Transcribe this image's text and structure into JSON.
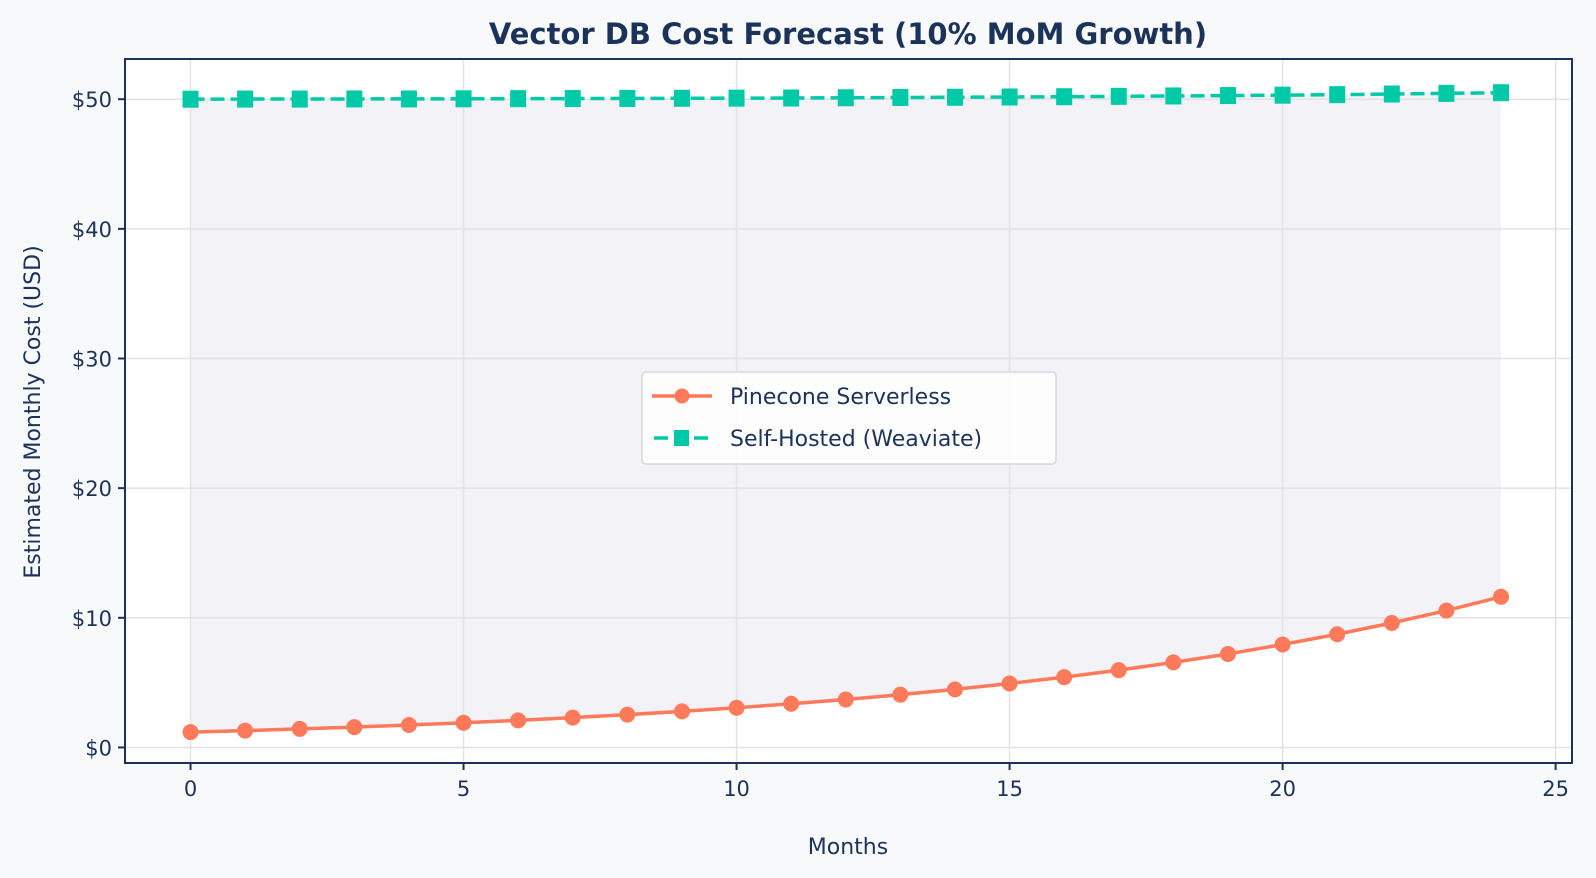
{
  "chart_data": {
    "type": "line",
    "title": "Vector DB Cost Forecast (10% MoM Growth)",
    "xlabel": "Months",
    "ylabel": "Estimated Monthly Cost (USD)",
    "xlim": [
      -1.2,
      25.3
    ],
    "ylim": [
      -1.2,
      53.1
    ],
    "x_ticks": [
      0,
      5,
      10,
      15,
      20,
      25
    ],
    "x_tick_labels": [
      "0",
      "5",
      "10",
      "15",
      "20",
      "25"
    ],
    "y_ticks": [
      0,
      10,
      20,
      30,
      40,
      50
    ],
    "y_tick_labels": [
      "$0",
      "$10",
      "$20",
      "$30",
      "$40",
      "$50"
    ],
    "grid": true,
    "legend_position": "center",
    "x": [
      0,
      1,
      2,
      3,
      4,
      5,
      6,
      7,
      8,
      9,
      10,
      11,
      12,
      13,
      14,
      15,
      16,
      17,
      18,
      19,
      20,
      21,
      22,
      23,
      24
    ],
    "series": [
      {
        "name": "Pinecone Serverless",
        "color": "#ff7a5a",
        "line_style": "solid",
        "marker": "circle",
        "values": [
          1.18,
          1.3,
          1.43,
          1.57,
          1.73,
          1.9,
          2.09,
          2.3,
          2.53,
          2.78,
          3.06,
          3.37,
          3.7,
          4.07,
          4.48,
          4.93,
          5.42,
          5.96,
          6.56,
          7.21,
          7.94,
          8.73,
          9.6,
          10.56,
          11.62
        ]
      },
      {
        "name": "Self-Hosted (Weaviate)",
        "color": "#00c9a7",
        "line_style": "dashed",
        "marker": "square",
        "values": [
          50.0,
          50.01,
          50.01,
          50.02,
          50.02,
          50.03,
          50.04,
          50.05,
          50.06,
          50.07,
          50.08,
          50.09,
          50.11,
          50.13,
          50.15,
          50.17,
          50.19,
          50.22,
          50.25,
          50.28,
          50.31,
          50.35,
          50.4,
          50.45,
          50.5
        ]
      }
    ],
    "shaded_region": {
      "between": [
        "Pinecone Serverless",
        "Self-Hosted (Weaviate)"
      ],
      "color": "#f2f2f7"
    }
  },
  "colors": {
    "background": "#f7f9fb",
    "axes_face": "#ffffff",
    "axes_edge": "#1c3359",
    "text": "#1c3359",
    "grid": "#e3e3e6"
  }
}
